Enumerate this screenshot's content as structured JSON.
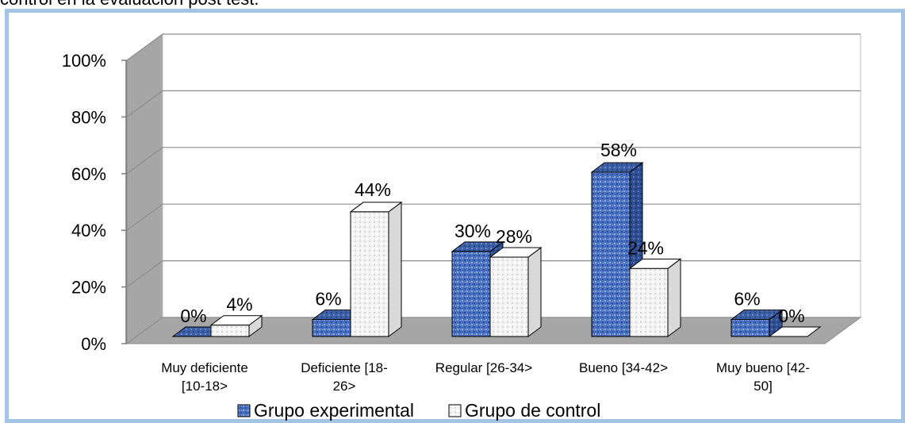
{
  "caption": "control en la evaluación post test.",
  "colors": {
    "experimental": "#4a72c2",
    "control": "#f2f2f2",
    "frame": "#a3c4e3",
    "wall": "#a6a6a6",
    "floor": "#a6a6a6"
  },
  "chart_data": {
    "type": "bar",
    "categories": [
      [
        "Muy deficiente",
        "[10-18>"
      ],
      [
        "Deficiente [18-",
        "26>"
      ],
      [
        "Regular [26-34>"
      ],
      [
        "Bueno [34-42>"
      ],
      [
        "Muy bueno [42-",
        "50]"
      ]
    ],
    "series": [
      {
        "name": "Grupo experimental",
        "values": [
          0,
          6,
          30,
          58,
          6
        ],
        "labels": [
          "0%",
          "6%",
          "30%",
          "58%",
          "6%"
        ],
        "icon": "blue-textured-square"
      },
      {
        "name": "Grupo de control",
        "values": [
          4,
          44,
          28,
          24,
          0
        ],
        "labels": [
          "4%",
          "44%",
          "28%",
          "24%",
          "0%"
        ],
        "icon": "white-textured-square"
      }
    ],
    "yticks": [
      "0%",
      "20%",
      "40%",
      "60%",
      "80%",
      "100%"
    ],
    "ylim": [
      0,
      100
    ],
    "grid": true,
    "style": "3d-clustered-column",
    "legend_position": "bottom"
  }
}
